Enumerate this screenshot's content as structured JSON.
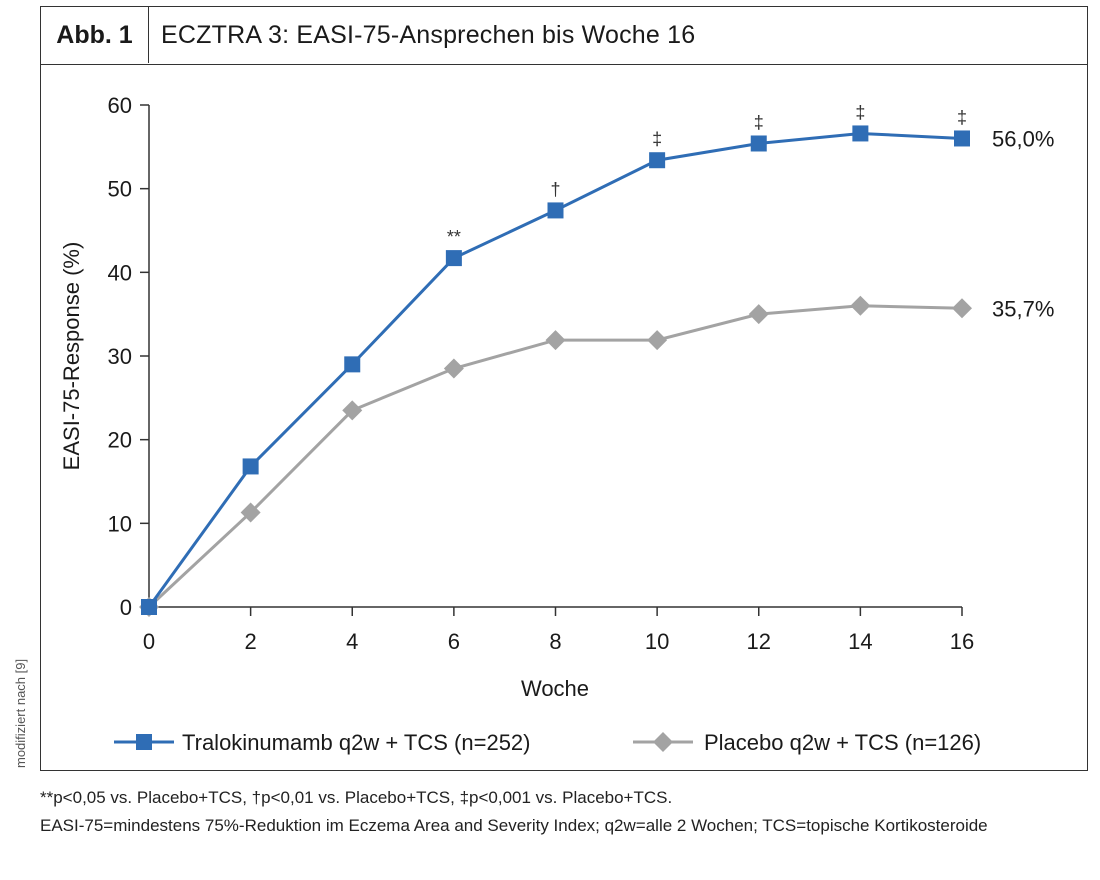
{
  "header": {
    "label": "Abb. 1",
    "title": "ECZTRA 3: EASI-75-Ansprechen bis Woche 16"
  },
  "side_note": "modifiziert nach [9]",
  "footnotes": {
    "significance": "**p<0,05 vs. Placebo+TCS, †p<0,01 vs. Placebo+TCS, ‡p<0,001 vs. Placebo+TCS.",
    "definitions": "EASI-75=mindestens 75%-Reduktion im Eczema Area and Severity Index; q2w=alle 2 Wochen; TCS=topische Kortikosteroide"
  },
  "colors": {
    "tralokinumab": "#2f6db5",
    "placebo": "#a3a3a3",
    "axis": "#333333"
  },
  "chart_data": {
    "type": "line",
    "xlabel": "Woche",
    "ylabel": "EASI-75-Response (%)",
    "x": [
      0,
      2,
      4,
      6,
      8,
      10,
      12,
      14,
      16
    ],
    "xlim": [
      0,
      16
    ],
    "ylim": [
      0,
      60
    ],
    "xticks": [
      0,
      2,
      4,
      6,
      8,
      10,
      12,
      14,
      16
    ],
    "yticks": [
      0,
      10,
      20,
      30,
      40,
      50,
      60
    ],
    "grid": false,
    "legend_position": "bottom",
    "series": [
      {
        "name": "Tralokinumamb q2w + TCS (n=252)",
        "marker": "square",
        "values": [
          0,
          16.8,
          29.0,
          41.7,
          47.4,
          53.4,
          55.4,
          56.6,
          56.0
        ],
        "end_label": "56,0%",
        "significance": [
          "",
          "",
          "",
          "**",
          "†",
          "‡",
          "‡",
          "‡",
          "‡"
        ]
      },
      {
        "name": "Placebo q2w + TCS (n=126)",
        "marker": "diamond",
        "values": [
          0,
          11.3,
          23.5,
          28.5,
          31.9,
          31.9,
          35.0,
          36.0,
          35.7
        ],
        "end_label": "35,7%"
      }
    ]
  }
}
